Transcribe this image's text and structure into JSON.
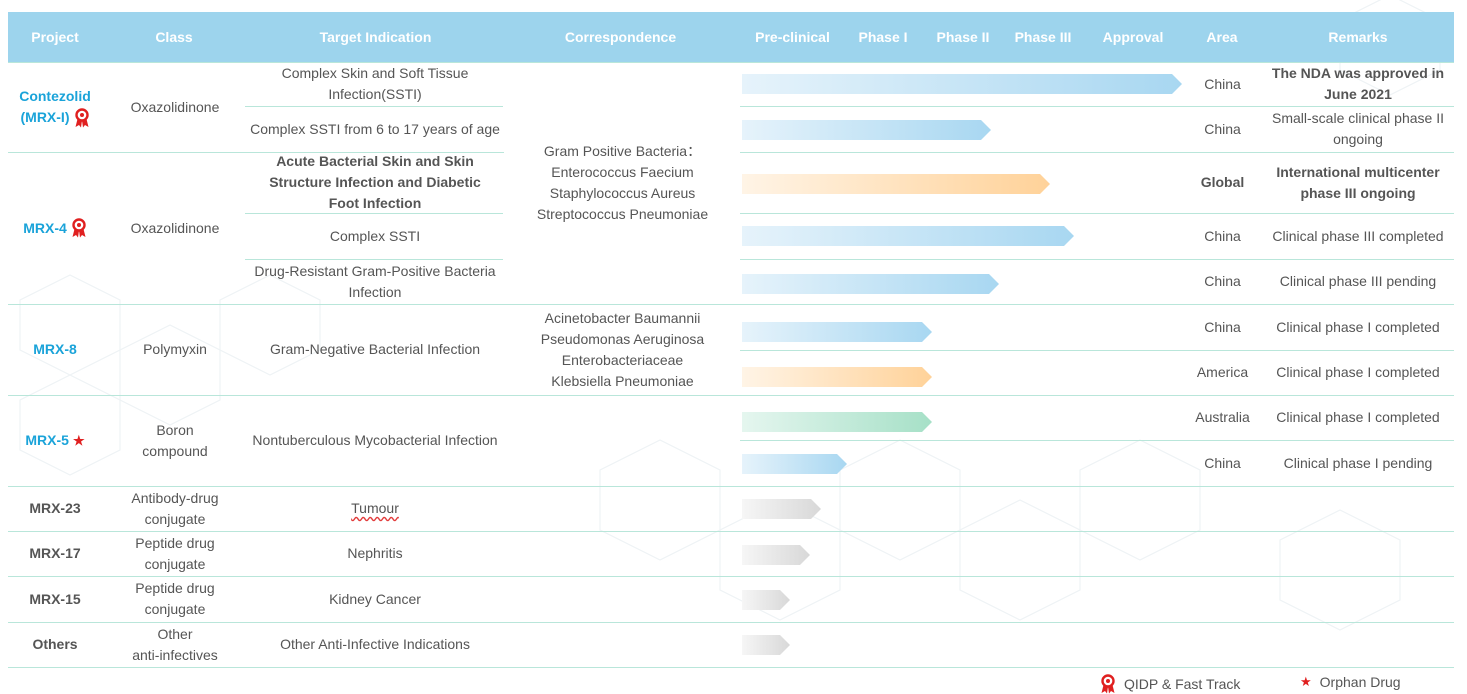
{
  "header": {
    "project": "Project",
    "class": "Class",
    "target": "Target Indication",
    "correspondence": "Correspondence",
    "preclinical": "Pre-clinical",
    "phase1": "Phase I",
    "phase2": "Phase II",
    "phase3": "Phase III",
    "approval": "Approval",
    "area": "Area",
    "remarks": "Remarks"
  },
  "projects": [
    {
      "name": "Contezolid",
      "name2": "(MRX-I)",
      "class": "Oxazolidinone",
      "badge": "qidp"
    },
    {
      "name": "MRX-4",
      "class": "Oxazolidinone",
      "badge": "qidp"
    },
    {
      "name": "MRX-8",
      "class": "Polymyxin"
    },
    {
      "name": "MRX-5",
      "class_line1": "Boron",
      "class_line2": "compound",
      "badge": "orphan"
    },
    {
      "name": "MRX-23",
      "class_line1": "Antibody-drug",
      "class_line2": "conjugate"
    },
    {
      "name": "MRX-17",
      "class_line1": "Peptide drug",
      "class_line2": "conjugate"
    },
    {
      "name": "MRX-15",
      "class_line1": "Peptide drug",
      "class_line2": "conjugate"
    },
    {
      "name": "Others",
      "class_line1": "Other",
      "class_line2": "anti-infectives"
    }
  ],
  "indications": {
    "r1": "Complex Skin and Soft Tissue Infection(SSTI)",
    "r2": "Complex SSTI from 6 to 17 years of age",
    "r3": "Acute Bacterial Skin and Skin Structure Infection and Diabetic Foot Infection",
    "r4": "Complex SSTI",
    "r5": "Drug-Resistant Gram-Positive Bacteria Infection",
    "mrx8": "Gram-Negative Bacterial Infection",
    "mrx5": "Nontuberculous Mycobacterial Infection",
    "mrx23": "Tumour",
    "mrx17": "Nephritis",
    "mrx15": "Kidney Cancer",
    "others": "Other Anti-Infective Indications"
  },
  "correspondence": {
    "gram_positive": [
      "Gram Positive Bacteria：",
      "Enterococcus Faecium",
      "Staphylococcus Aureus",
      "Streptococcus Pneumoniae"
    ],
    "gram_negative": [
      "Acinetobacter Baumannii",
      "Pseudomonas Aeruginosa",
      "Enterobacteriaceae",
      "Klebsiella Pneumoniae"
    ]
  },
  "rows": [
    {
      "area": "China",
      "remark": "The NDA was approved in June 2021",
      "bold": true,
      "bar": "blue"
    },
    {
      "area": "China",
      "remark": "Small-scale clinical phase II ongoing",
      "bar": "blue"
    },
    {
      "area": "Global",
      "remark": "International multicenter phase III ongoing",
      "bold": true,
      "bar": "orange"
    },
    {
      "area": "China",
      "remark": "Clinical phase III completed",
      "bar": "blue"
    },
    {
      "area": "China",
      "remark": "Clinical phase III pending",
      "bar": "blue"
    },
    {
      "area": "China",
      "remark": "Clinical phase I completed",
      "bar": "blue"
    },
    {
      "area": "America",
      "remark": "Clinical phase I completed",
      "bar": "orange"
    },
    {
      "area": "Australia",
      "remark": "Clinical phase I completed",
      "bar": "green"
    },
    {
      "area": "China",
      "remark": "Clinical phase I pending",
      "bar": "blue"
    },
    {
      "area": "",
      "remark": "",
      "bar": "gray"
    },
    {
      "area": "",
      "remark": "",
      "bar": "gray"
    },
    {
      "area": "",
      "remark": "",
      "bar": "gray"
    },
    {
      "area": "",
      "remark": "",
      "bar": "gray"
    }
  ],
  "legend": {
    "qidp": "QIDP & Fast Track",
    "orphan": "Orphan Drug"
  },
  "colors": {
    "header_bg": "#9dd4ed",
    "project_blue": "#1aa3d9",
    "divider": "#b9e6da",
    "bar_blue": "#a8d7f1",
    "bar_orange": "#ffd299",
    "bar_green": "#a6e0c7",
    "bar_gray": "#d8d8d8",
    "badge_red": "#e02020"
  }
}
